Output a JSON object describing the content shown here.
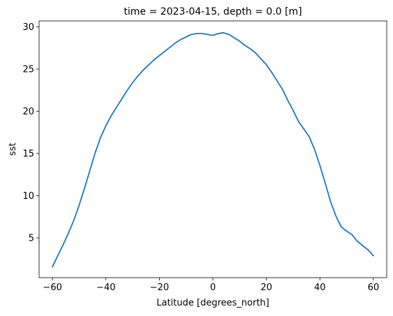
{
  "chart_data": {
    "type": "line",
    "title": "time = 2023-04-15, depth = 0.0 [m]",
    "xlabel": "Latitude [degrees_north]",
    "ylabel": "sst",
    "xlim": [
      -65,
      65
    ],
    "ylim": [
      0.3,
      30.7
    ],
    "xticks": [
      -60,
      -40,
      -20,
      0,
      20,
      40,
      60
    ],
    "xtick_labels": [
      "−60",
      "−40",
      "−20",
      "0",
      "20",
      "40",
      "60"
    ],
    "yticks": [
      5,
      10,
      15,
      20,
      25,
      30
    ],
    "ytick_labels": [
      "5",
      "10",
      "15",
      "20",
      "25",
      "30"
    ],
    "grid": false,
    "legend": "none",
    "series": [
      {
        "color": "#1f77b4",
        "x": [
          -60,
          -58,
          -56,
          -54,
          -52,
          -50,
          -48,
          -46,
          -44,
          -42,
          -40,
          -38,
          -36,
          -34,
          -32,
          -30,
          -28,
          -26,
          -24,
          -22,
          -20,
          -18,
          -16,
          -14,
          -12,
          -10,
          -8,
          -6,
          -4,
          -2,
          0,
          2,
          4,
          6,
          8,
          10,
          12,
          14,
          16,
          18,
          20,
          22,
          24,
          26,
          28,
          30,
          32,
          34,
          36,
          38,
          40,
          42,
          44,
          46,
          48,
          50,
          52,
          54,
          56,
          58,
          60
        ],
        "y": [
          1.6,
          2.9,
          4.2,
          5.6,
          7.1,
          8.9,
          10.9,
          13.0,
          15.1,
          16.9,
          18.3,
          19.5,
          20.5,
          21.5,
          22.5,
          23.4,
          24.2,
          24.9,
          25.5,
          26.1,
          26.6,
          27.1,
          27.6,
          28.1,
          28.5,
          28.8,
          29.1,
          29.2,
          29.2,
          29.1,
          29.0,
          29.2,
          29.3,
          29.1,
          28.7,
          28.3,
          27.8,
          27.4,
          26.9,
          26.2,
          25.5,
          24.6,
          23.6,
          22.6,
          21.3,
          20.1,
          18.8,
          17.9,
          17.0,
          15.5,
          13.6,
          11.5,
          9.3,
          7.6,
          6.3,
          5.8,
          5.4,
          4.6,
          4.1,
          3.6,
          2.9
        ]
      }
    ]
  }
}
